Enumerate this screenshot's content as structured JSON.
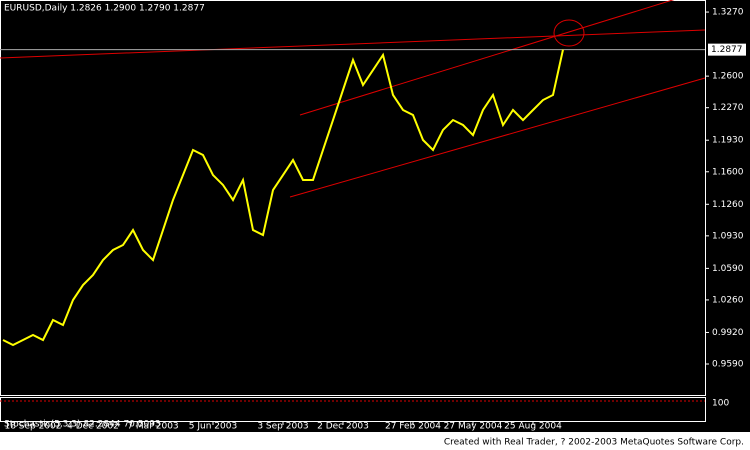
{
  "chart_data": {
    "type": "line",
    "title": "EURUSD,Daily  1.2826 1.2900 1.2790 1.2877",
    "footer": "Created with Real Trader, ? 2002-2003 MetaQuotes Software Corp.",
    "categories": [
      null,
      null,
      null,
      "18 Sep 2002",
      null,
      null,
      null,
      null,
      null,
      "4 Dec 2002",
      null,
      null,
      null,
      null,
      null,
      "7 Mar 2003",
      null,
      null,
      null,
      null,
      null,
      "5 Jun 2003",
      null,
      null,
      null,
      null,
      null,
      null,
      "3 Sep 2003",
      null,
      null,
      null,
      null,
      null,
      "2 Dec 2003",
      null,
      null,
      null,
      null,
      null,
      null,
      "27 Feb 2004",
      null,
      null,
      null,
      null,
      null,
      "27 May 2004",
      null,
      null,
      null,
      null,
      null,
      "25 Aug 2004",
      null,
      null,
      null
    ],
    "series": [
      {
        "name": "EURUSD",
        "color": "#ffff00",
        "values": [
          0.9841,
          0.9789,
          0.9841,
          0.9893,
          0.9841,
          1.005,
          0.9998,
          1.0259,
          1.0416,
          1.0521,
          1.0677,
          1.0782,
          1.0834,
          1.0991,
          1.0782,
          1.0677,
          1.0991,
          1.1305,
          1.1566,
          1.1828,
          1.1775,
          1.1566,
          1.1462,
          1.1305,
          1.1514,
          1.0991,
          1.0939,
          1.1409,
          1.1566,
          1.1723,
          1.1514,
          1.1514,
          1.1828,
          1.2141,
          1.2455,
          1.2769,
          1.2507,
          1.2664,
          1.2821,
          1.2403,
          1.2246,
          1.2194,
          1.1932,
          1.1828,
          1.2037,
          1.2141,
          1.2089,
          1.1984,
          1.2246,
          1.2403,
          1.2089,
          1.2246,
          1.2141,
          1.2246,
          1.235,
          1.2403,
          1.2877
        ]
      }
    ],
    "last_price": {
      "value": 1.2877,
      "label": "1.2877"
    },
    "ylim": [
      0.9266,
      1.3396
    ],
    "yticks": [
      {
        "value": 1.327,
        "label": "1.3270"
      },
      {
        "value": 1.26,
        "label": "1.2600"
      },
      {
        "value": 1.227,
        "label": "1.2270"
      },
      {
        "value": 1.193,
        "label": "1.1930"
      },
      {
        "value": 1.16,
        "label": "1.1600"
      },
      {
        "value": 1.126,
        "label": "1.1260"
      },
      {
        "value": 1.093,
        "label": "1.0930"
      },
      {
        "value": 1.059,
        "label": "1.0590"
      },
      {
        "value": 1.026,
        "label": "1.0260"
      },
      {
        "value": 0.992,
        "label": "0.9920"
      },
      {
        "value": 0.959,
        "label": "0.9590"
      }
    ],
    "grid": false,
    "indicator": {
      "label": "Stochastic(5,3,3) 82.2844 70.5093",
      "ylim": [
        0,
        100
      ],
      "yticks": [
        100
      ]
    }
  }
}
